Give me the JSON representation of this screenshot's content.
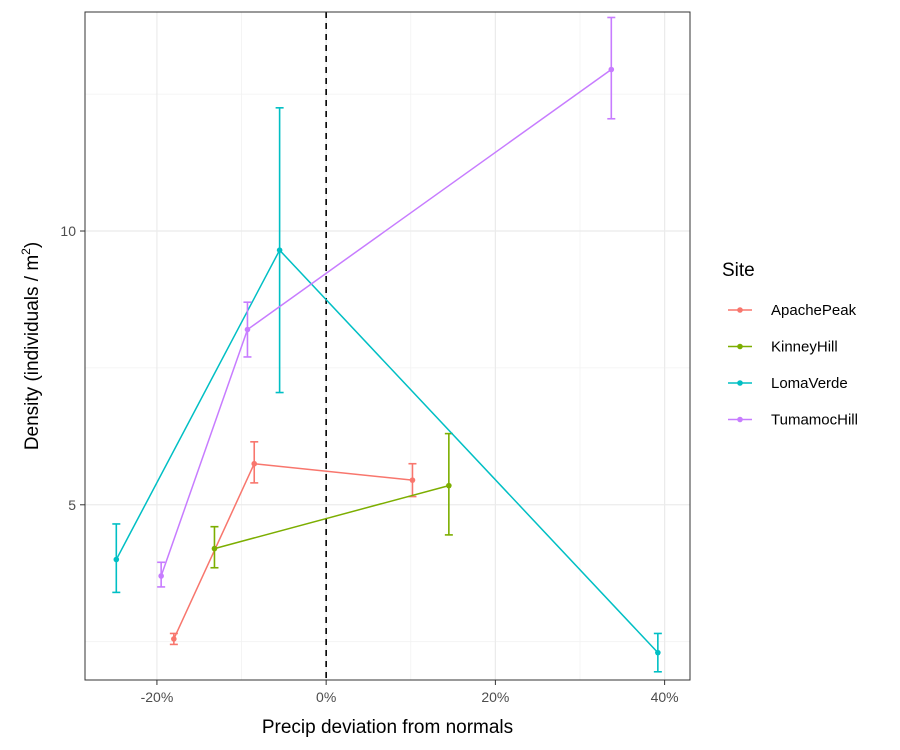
{
  "chart_data": {
    "type": "line",
    "xlabel": "Precip deviation from normals",
    "ylabel_main": "Density (individuals / m",
    "ylabel_sup": "2",
    "ylabel_close": ")",
    "xlim": [
      -0.285,
      0.43
    ],
    "ylim": [
      1.8,
      14.0
    ],
    "x_ticks": [
      {
        "value": -0.2,
        "label": "-20%"
      },
      {
        "value": 0.0,
        "label": "0%"
      },
      {
        "value": 0.2,
        "label": "20%"
      },
      {
        "value": 0.4,
        "label": "40%"
      }
    ],
    "x_minor_ticks": [
      -0.1,
      0.1,
      0.3
    ],
    "y_ticks": [
      {
        "value": 5,
        "label": "5"
      },
      {
        "value": 10,
        "label": "10"
      }
    ],
    "y_minor_ticks": [
      2.5,
      7.5,
      12.5
    ],
    "grid": true,
    "reference_line": {
      "x": 0.0,
      "style": "dashed"
    },
    "legend": {
      "title": "Site",
      "position": "right"
    },
    "series": [
      {
        "name": "ApachePeak",
        "color": "#F8766D",
        "points": [
          {
            "x": -0.18,
            "y": 2.55,
            "ymin": 2.45,
            "ymax": 2.65
          },
          {
            "x": -0.085,
            "y": 5.75,
            "ymin": 5.4,
            "ymax": 6.15
          },
          {
            "x": 0.102,
            "y": 5.45,
            "ymin": 5.15,
            "ymax": 5.75
          }
        ]
      },
      {
        "name": "KinneyHill",
        "color": "#7CAE00",
        "points": [
          {
            "x": -0.132,
            "y": 4.2,
            "ymin": 3.85,
            "ymax": 4.6
          },
          {
            "x": 0.145,
            "y": 5.35,
            "ymin": 4.45,
            "ymax": 6.3
          }
        ]
      },
      {
        "name": "LomaVerde",
        "color": "#00BFC4",
        "points": [
          {
            "x": -0.248,
            "y": 4.0,
            "ymin": 3.4,
            "ymax": 4.65
          },
          {
            "x": -0.055,
            "y": 9.65,
            "ymin": 7.05,
            "ymax": 12.25
          },
          {
            "x": 0.392,
            "y": 2.3,
            "ymin": 1.95,
            "ymax": 2.65
          }
        ]
      },
      {
        "name": "TumamocHill",
        "color": "#C77CFF",
        "points": [
          {
            "x": -0.195,
            "y": 3.7,
            "ymin": 3.5,
            "ymax": 3.95
          },
          {
            "x": -0.093,
            "y": 8.2,
            "ymin": 7.7,
            "ymax": 8.7
          },
          {
            "x": 0.337,
            "y": 12.95,
            "ymin": 12.05,
            "ymax": 13.9
          }
        ]
      }
    ]
  }
}
